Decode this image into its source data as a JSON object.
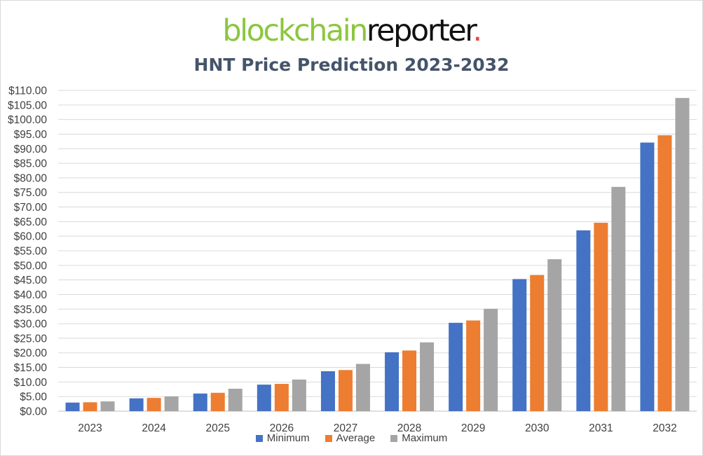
{
  "logo": {
    "part1": "blockchain",
    "part2": "reporter",
    "dot": "."
  },
  "chart_data": {
    "type": "bar",
    "title": "HNT Price Prediction 2023-2032",
    "xlabel": "",
    "ylabel": "",
    "categories": [
      "2023",
      "2024",
      "2025",
      "2026",
      "2027",
      "2028",
      "2029",
      "2030",
      "2031",
      "2032"
    ],
    "series": [
      {
        "name": "Minimum",
        "color": "#4472c4",
        "values": [
          2.95,
          4.4,
          6.05,
          9.1,
          13.7,
          20.2,
          30.3,
          45.3,
          62.0,
          92.1
        ]
      },
      {
        "name": "Average",
        "color": "#ed7d31",
        "values": [
          3.05,
          4.55,
          6.3,
          9.35,
          14.1,
          20.8,
          31.1,
          46.7,
          64.6,
          94.6
        ]
      },
      {
        "name": "Maximum",
        "color": "#a5a5a5",
        "values": [
          3.35,
          5.05,
          7.7,
          10.85,
          16.2,
          23.6,
          35.1,
          52.1,
          76.9,
          107.4
        ]
      }
    ],
    "ylim": [
      0,
      110
    ],
    "yticks": [
      "$0.00",
      "$5.00",
      "$10.00",
      "$15.00",
      "$20.00",
      "$25.00",
      "$30.00",
      "$35.00",
      "$40.00",
      "$45.00",
      "$50.00",
      "$55.00",
      "$60.00",
      "$65.00",
      "$70.00",
      "$75.00",
      "$80.00",
      "$85.00",
      "$90.00",
      "$95.00",
      "$100.00",
      "$105.00",
      "$110.00"
    ],
    "grid": true,
    "legend_position": "bottom"
  }
}
